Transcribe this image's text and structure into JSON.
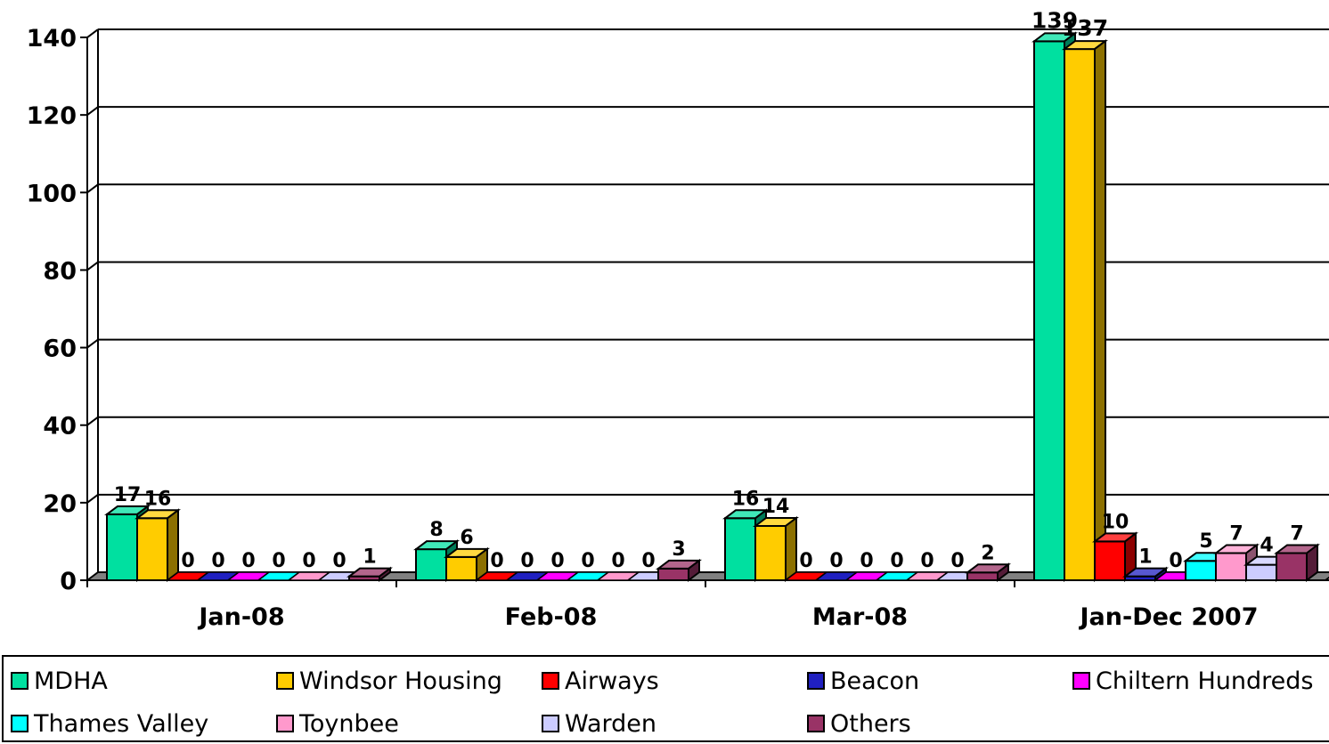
{
  "chart_data": {
    "type": "bar",
    "categories": [
      "Jan-08",
      "Feb-08",
      "Mar-08",
      "Jan-Dec 2007"
    ],
    "ylim": [
      0,
      140
    ],
    "yticks": [
      0,
      20,
      40,
      60,
      80,
      100,
      120,
      140
    ],
    "grid": true,
    "legend_position": "bottom",
    "series": [
      {
        "name": "MDHA",
        "color": "#00E0A0",
        "values": [
          17,
          8,
          16,
          139
        ]
      },
      {
        "name": "Windsor Housing",
        "color": "#FFCC00",
        "values": [
          16,
          6,
          14,
          137
        ]
      },
      {
        "name": "Airways",
        "color": "#FF0000",
        "values": [
          0,
          0,
          0,
          10
        ]
      },
      {
        "name": "Beacon",
        "color": "#2020C0",
        "values": [
          0,
          0,
          0,
          1
        ]
      },
      {
        "name": "Chiltern Hundreds",
        "color": "#FF00FF",
        "values": [
          0,
          0,
          0,
          0
        ]
      },
      {
        "name": "Thames Valley",
        "color": "#00FFFF",
        "values": [
          0,
          0,
          0,
          5
        ]
      },
      {
        "name": "Toynbee",
        "color": "#FF99CC",
        "values": [
          0,
          0,
          0,
          7
        ]
      },
      {
        "name": "Warden",
        "color": "#CCCCFF",
        "values": [
          0,
          0,
          0,
          4
        ]
      },
      {
        "name": "Others",
        "color": "#993366",
        "values": [
          1,
          3,
          2,
          7
        ]
      }
    ]
  }
}
